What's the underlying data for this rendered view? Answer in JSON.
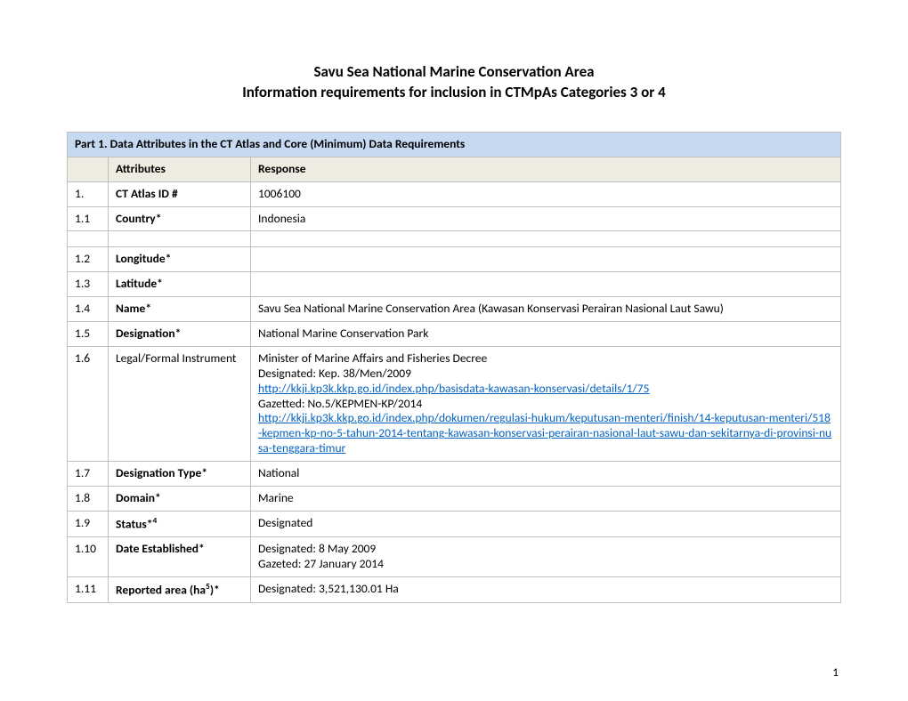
{
  "colors": {
    "section_header_bg": "#c6d9f1",
    "column_header_bg": "#eeece1",
    "border": "#bfbfbf",
    "link": "#0563c1",
    "text": "#000000",
    "background": "#ffffff"
  },
  "typography": {
    "body_font": "Calibri",
    "title_fontsize_pt": 13,
    "body_fontsize_pt": 10.5
  },
  "title": {
    "line1": "Savu Sea National Marine Conservation Area",
    "line2": "Information requirements for inclusion in CTMpAs Categories  3 or 4"
  },
  "table": {
    "section_header": "Part 1. Data Attributes in the CT Atlas and Core (Minimum) Data Requirements",
    "columns": {
      "attributes": "Attributes",
      "response": "Response"
    },
    "rows": {
      "r1": {
        "num": "1.",
        "attr": "CT Atlas ID #",
        "resp": "1006100",
        "bold": true
      },
      "r1_1": {
        "num": "1.1",
        "attr": "Country*",
        "resp": "Indonesia",
        "bold": true
      },
      "r1_2": {
        "num": "1.2",
        "attr": "Longitude*",
        "resp": "",
        "bold": true
      },
      "r1_3": {
        "num": "1.3",
        "attr": "Latitude*",
        "resp": "",
        "bold": true
      },
      "r1_4": {
        "num": "1.4",
        "attr": "Name*",
        "resp": "Savu Sea National Marine Conservation Area (Kawasan Konservasi Perairan Nasional Laut Sawu)",
        "bold": true
      },
      "r1_5": {
        "num": "1.5",
        "attr": "Designation*",
        "resp": "National Marine Conservation Park",
        "bold": true
      },
      "r1_6": {
        "num": "1.6",
        "attr": "Legal/Formal Instrument",
        "bold": false,
        "lines": {
          "l1": "Minister of Marine Affairs and Fisheries Decree",
          "l2": "Designated: Kep. 38/Men/2009",
          "l3_link": "http://kkji.kp3k.kkp.go.id/index.php/basisdata-kawasan-konservasi/details/1/75",
          "l4": "Gazetted: No.5/KEPMEN-KP/2014",
          "l5_link": "http://kkji.kp3k.kkp.go.id/index.php/dokumen/regulasi-hukum/keputusan-menteri/finish/14-keputusan-menteri/518-kepmen-kp-no-5-tahun-2014-tentang-kawasan-konservasi-perairan-nasional-laut-sawu-dan-sekitarnya-di-provinsi-nusa-tenggara-timur"
        }
      },
      "r1_7": {
        "num": "1.7",
        "attr": "Designation Type*",
        "resp": "National",
        "bold": true
      },
      "r1_8": {
        "num": "1.8",
        "attr": "Domain*",
        "resp": "Marine",
        "bold": true
      },
      "r1_9": {
        "num": "1.9",
        "attr_pre": "Status*",
        "attr_sup": "4",
        "resp": "Designated",
        "bold": true
      },
      "r1_10": {
        "num": "1.10",
        "attr": "Date Established*",
        "resp_l1": "Designated: 8 May 2009",
        "resp_l2": "Gazeted: 27 January 2014",
        "bold": true
      },
      "r1_11": {
        "num": "1.11",
        "attr_pre": "Reported area (ha",
        "attr_sup": "5",
        "attr_post": ")*",
        "resp": "Designated: 3,521,130.01 Ha",
        "bold": true
      }
    }
  },
  "page_number": "1"
}
